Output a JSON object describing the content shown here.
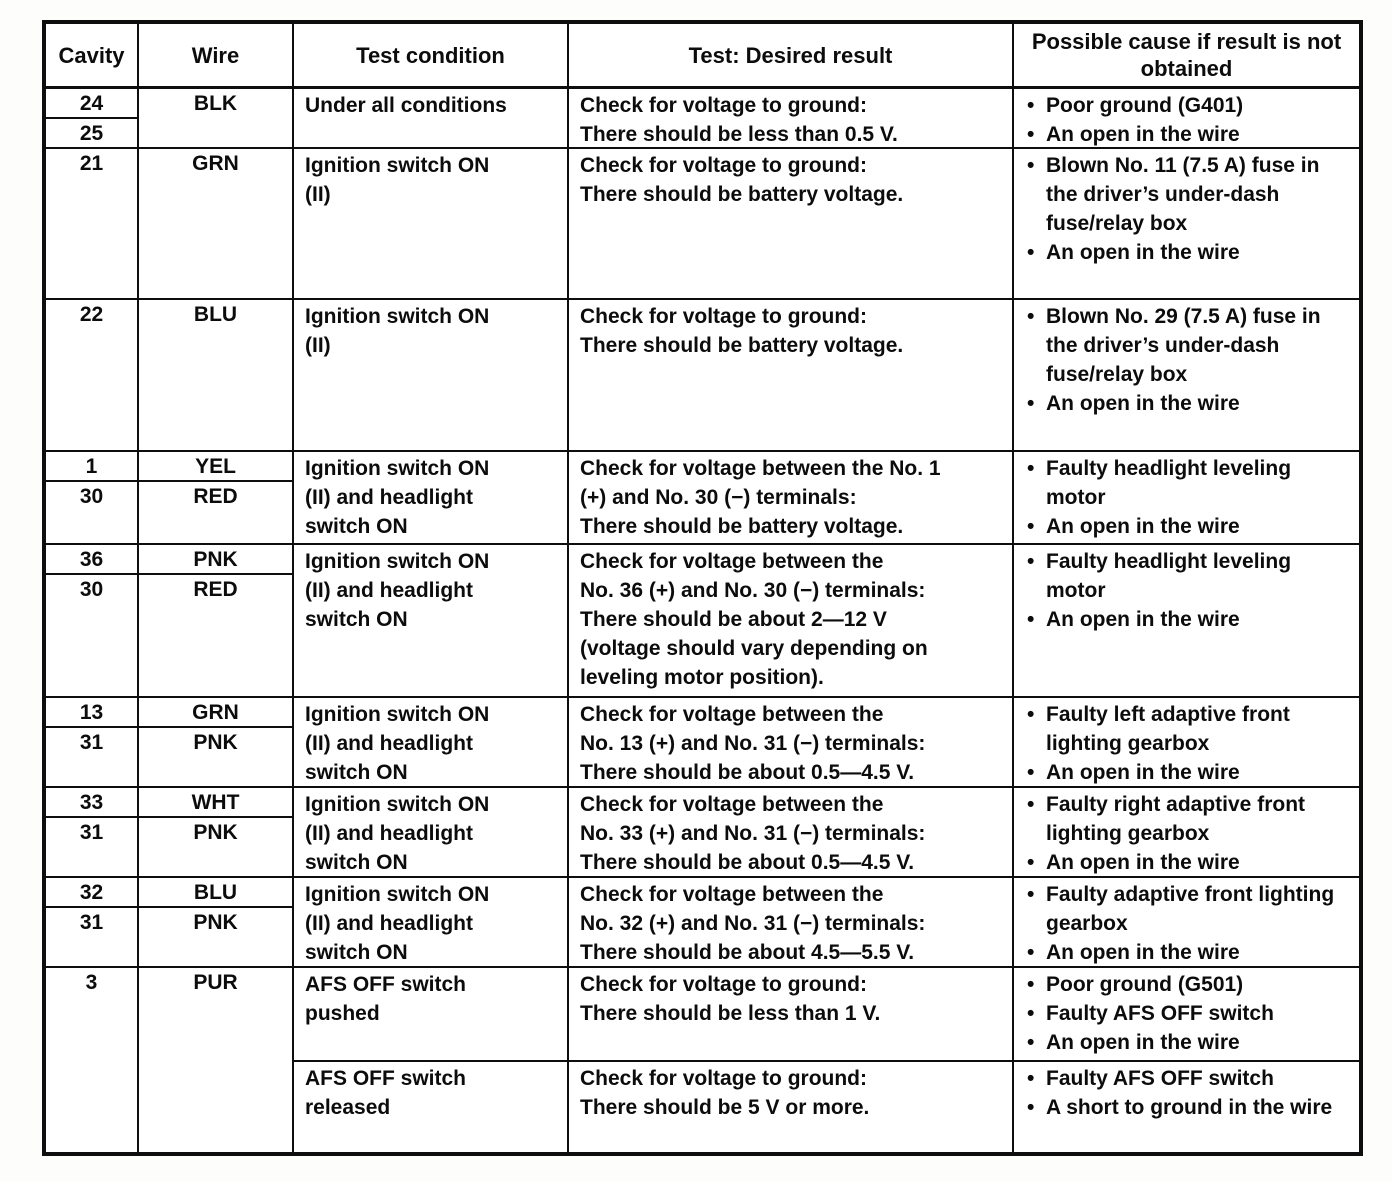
{
  "table": {
    "title": "connector-test-table",
    "headers": [
      "Cavity",
      "Wire",
      "Test condition",
      "Test: Desired result",
      "Possible cause if result is not obtained"
    ],
    "rows": [
      {
        "cavities": [
          "24",
          "25"
        ],
        "wires": [
          "BLK"
        ],
        "condition": "Under all conditions",
        "result": "Check for voltage to ground:\nThere should be less than 0.5 V.",
        "causes": [
          "Poor ground (G401)",
          "An open in the wire"
        ]
      },
      {
        "cavities": [
          "21"
        ],
        "wires": [
          "GRN"
        ],
        "condition": "Ignition switch ON\n(II)",
        "result": "Check for voltage to ground:\nThere should be battery voltage.",
        "causes": [
          "Blown No. 11 (7.5 A) fuse in the driver’s under-dash fuse/relay box",
          "An open in the wire"
        ]
      },
      {
        "cavities": [
          "22"
        ],
        "wires": [
          "BLU"
        ],
        "condition": "Ignition switch ON\n(II)",
        "result": "Check for voltage to ground:\nThere should be battery voltage.",
        "causes": [
          "Blown No. 29 (7.5 A) fuse in the driver’s under-dash fuse/relay box",
          "An open in the wire"
        ]
      },
      {
        "cavities": [
          "1",
          "30"
        ],
        "wires": [
          "YEL",
          "RED"
        ],
        "condition": "Ignition switch ON\n(II) and headlight\nswitch ON",
        "result": "Check for voltage between the No. 1\n(+) and No. 30 (−) terminals:\nThere should be battery voltage.",
        "causes": [
          "Faulty headlight leveling motor",
          "An open in the wire"
        ]
      },
      {
        "cavities": [
          "36",
          "30"
        ],
        "wires": [
          "PNK",
          "RED"
        ],
        "condition": "Ignition switch ON\n(II) and headlight\nswitch ON",
        "result": "Check for voltage between the\nNo. 36 (+) and No. 30 (−) terminals:\nThere should be about 2—12 V\n(voltage should vary depending on\nleveling motor position).",
        "causes": [
          "Faulty headlight leveling motor",
          "An open in the wire"
        ]
      },
      {
        "cavities": [
          "13",
          "31"
        ],
        "wires": [
          "GRN",
          "PNK"
        ],
        "condition": "Ignition switch ON\n(II) and headlight\nswitch ON",
        "result": "Check for voltage between the\nNo. 13 (+) and No. 31 (−) terminals:\nThere should be about 0.5—4.5 V.",
        "causes": [
          "Faulty left adaptive front lighting gearbox",
          "An open in the wire"
        ]
      },
      {
        "cavities": [
          "33",
          "31"
        ],
        "wires": [
          "WHT",
          "PNK"
        ],
        "condition": "Ignition switch ON\n(II) and headlight\nswitch ON",
        "result": "Check for voltage between the\nNo. 33 (+) and No. 31 (−) terminals:\nThere should be about 0.5—4.5 V.",
        "causes": [
          "Faulty right adaptive front lighting gearbox",
          "An open in the wire"
        ]
      },
      {
        "cavities": [
          "32",
          "31"
        ],
        "wires": [
          "BLU",
          "PNK"
        ],
        "condition": "Ignition switch ON\n(II) and headlight\nswitch ON",
        "result": "Check for voltage between the\nNo. 32 (+) and No. 31 (−) terminals:\nThere should be about 4.5—5.5 V.",
        "causes": [
          "Faulty adaptive front lighting gearbox",
          "An open in the wire"
        ]
      },
      {
        "cavities": [
          "3"
        ],
        "wires": [
          "PUR"
        ],
        "rowspan": 2,
        "condition": "AFS OFF switch\npushed",
        "result": "Check for voltage to ground:\nThere should be less than 1 V.",
        "causes": [
          "Poor ground (G501)",
          "Faulty AFS OFF switch",
          "An open in the wire"
        ]
      },
      {
        "cavities": null,
        "wires": null,
        "condition": "AFS OFF switch\nreleased",
        "result": "Check for voltage to ground:\nThere should be 5 V or more.",
        "causes": [
          "Faulty AFS OFF switch",
          "A short to ground in the wire"
        ]
      }
    ]
  }
}
